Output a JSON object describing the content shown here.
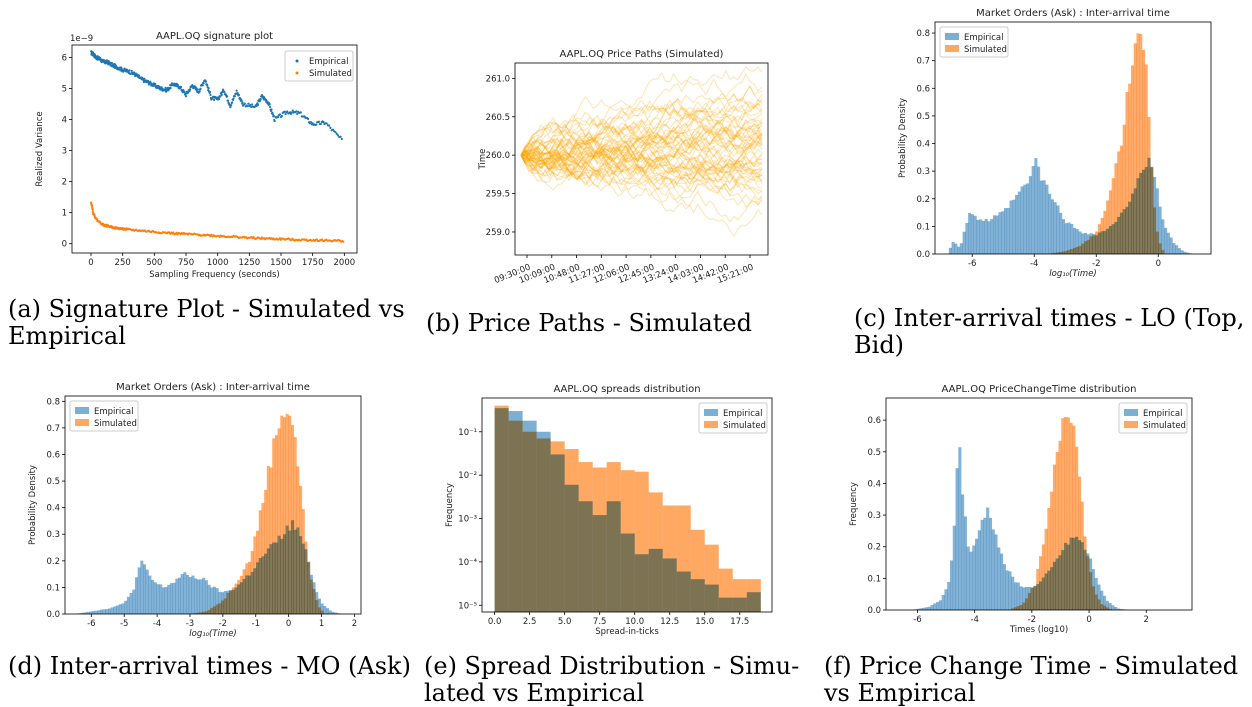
{
  "colors": {
    "empirical": "#1f77b4",
    "simulated": "#ff7f0e",
    "hist_empirical": "#7bafd4",
    "hist_simulated": "#ffa861",
    "path": "#ffa500"
  },
  "captions": {
    "a": [
      "(a) Signature Plot - Simulated vs",
      "Empirical"
    ],
    "b": [
      "(b) Price Paths - Simulated"
    ],
    "c": [
      "(c) Inter-arrival times - LO (Top,",
      "Bid)"
    ],
    "d": [
      "(d) Inter-arrival times - MO (Ask)"
    ],
    "e": [
      "(e)  Spread  Distribution  -  Simu-",
      "lated vs Empirical"
    ],
    "f": [
      "(f) Price Change Time - Simulated",
      "vs Empirical"
    ]
  },
  "chart_data": [
    {
      "id": "a",
      "type": "scatter",
      "title": "AAPL.OQ signature plot",
      "xlabel": "Sampling Frequency (seconds)",
      "ylabel": "Realized Variance",
      "y_multiplier": "1e−9",
      "xlim": [
        -150,
        2100
      ],
      "ylim": [
        -0.3,
        6.4
      ],
      "xticks": [
        0,
        250,
        500,
        750,
        1000,
        1250,
        1500,
        1750,
        2000
      ],
      "yticks": [
        0,
        1,
        2,
        3,
        4,
        5,
        6
      ],
      "legend": [
        "Empirical",
        "Simulated"
      ],
      "legend_position": "top-right",
      "series": [
        {
          "name": "Empirical",
          "points": [
            [
              1,
              6.15
            ],
            [
              20,
              6.1
            ],
            [
              40,
              6.0
            ],
            [
              70,
              5.95
            ],
            [
              100,
              5.85
            ],
            [
              130,
              5.85
            ],
            [
              170,
              5.75
            ],
            [
              200,
              5.7
            ],
            [
              250,
              5.6
            ],
            [
              300,
              5.55
            ],
            [
              350,
              5.45
            ],
            [
              400,
              5.3
            ],
            [
              450,
              5.2
            ],
            [
              500,
              5.1
            ],
            [
              550,
              5.0
            ],
            [
              600,
              4.95
            ],
            [
              650,
              5.15
            ],
            [
              700,
              5.05
            ],
            [
              750,
              4.8
            ],
            [
              800,
              5.1
            ],
            [
              850,
              4.9
            ],
            [
              900,
              5.3
            ],
            [
              950,
              4.7
            ],
            [
              1000,
              4.65
            ],
            [
              1050,
              4.95
            ],
            [
              1100,
              4.45
            ],
            [
              1150,
              4.9
            ],
            [
              1200,
              4.5
            ],
            [
              1300,
              4.4
            ],
            [
              1350,
              4.75
            ],
            [
              1400,
              4.55
            ],
            [
              1450,
              4.0
            ],
            [
              1550,
              4.25
            ],
            [
              1650,
              4.2
            ],
            [
              1750,
              3.85
            ],
            [
              1850,
              3.9
            ],
            [
              1990,
              3.3
            ]
          ]
        },
        {
          "name": "Simulated",
          "points": [
            [
              1,
              1.35
            ],
            [
              20,
              0.95
            ],
            [
              50,
              0.75
            ],
            [
              100,
              0.6
            ],
            [
              150,
              0.55
            ],
            [
              200,
              0.5
            ],
            [
              250,
              0.48
            ],
            [
              300,
              0.45
            ],
            [
              400,
              0.42
            ],
            [
              500,
              0.38
            ],
            [
              600,
              0.35
            ],
            [
              700,
              0.32
            ],
            [
              800,
              0.3
            ],
            [
              900,
              0.28
            ],
            [
              1000,
              0.25
            ],
            [
              1100,
              0.23
            ],
            [
              1200,
              0.2
            ],
            [
              1300,
              0.18
            ],
            [
              1400,
              0.16
            ],
            [
              1500,
              0.15
            ],
            [
              1600,
              0.13
            ],
            [
              1700,
              0.12
            ],
            [
              1800,
              0.11
            ],
            [
              1900,
              0.1
            ],
            [
              2000,
              0.09
            ]
          ]
        }
      ]
    },
    {
      "id": "b",
      "type": "line",
      "title": "AAPL.OQ Price Paths (Simulated)",
      "xlabel": "",
      "ylabel": "Time",
      "ylim": [
        258.7,
        261.2
      ],
      "yticks": [
        259.0,
        259.5,
        260.0,
        260.5,
        261.0
      ],
      "xticks": [
        "09:30:00",
        "10:09:00",
        "10:48:00",
        "11:27:00",
        "12:06:00",
        "12:45:00",
        "13:24:00",
        "14:03:00",
        "14:42:00",
        "15:21:00"
      ],
      "start_value": 260.0,
      "path_count": 60
    },
    {
      "id": "c",
      "type": "histogram",
      "title": "Market Orders (Ask) : Inter-arrival time",
      "xlabel": "log₁₀(Time)",
      "ylabel": "Probability Density",
      "xlim": [
        -7.2,
        1.7
      ],
      "ylim": [
        0,
        0.84
      ],
      "xticks": [
        -6,
        -4,
        -2,
        0
      ],
      "yticks": [
        0.0,
        0.1,
        0.2,
        0.3,
        0.4,
        0.5,
        0.6,
        0.7,
        0.8
      ],
      "legend": [
        "Empirical",
        "Simulated"
      ],
      "legend_position": "top-left",
      "series": [
        {
          "name": "Empirical",
          "points": [
            [
              -6.8,
              0.0
            ],
            [
              -6.6,
              0.05
            ],
            [
              -6.4,
              0.02
            ],
            [
              -6.1,
              0.15
            ],
            [
              -5.9,
              0.13
            ],
            [
              -5.5,
              0.12
            ],
            [
              -5.0,
              0.15
            ],
            [
              -4.5,
              0.22
            ],
            [
              -4.2,
              0.26
            ],
            [
              -3.95,
              0.34
            ],
            [
              -3.75,
              0.27
            ],
            [
              -3.5,
              0.22
            ],
            [
              -3.0,
              0.12
            ],
            [
              -2.5,
              0.08
            ],
            [
              -2.0,
              0.07
            ],
            [
              -1.5,
              0.1
            ],
            [
              -1.0,
              0.17
            ],
            [
              -0.6,
              0.3
            ],
            [
              -0.3,
              0.33
            ],
            [
              -0.1,
              0.26
            ],
            [
              0.2,
              0.1
            ],
            [
              0.5,
              0.04
            ],
            [
              0.8,
              0.01
            ],
            [
              1.1,
              0.0
            ]
          ]
        },
        {
          "name": "Simulated",
          "points": [
            [
              -3.6,
              0.0
            ],
            [
              -3.0,
              0.01
            ],
            [
              -2.5,
              0.03
            ],
            [
              -2.0,
              0.08
            ],
            [
              -1.6,
              0.2
            ],
            [
              -1.2,
              0.4
            ],
            [
              -0.9,
              0.65
            ],
            [
              -0.65,
              0.81
            ],
            [
              -0.45,
              0.75
            ],
            [
              -0.3,
              0.5
            ],
            [
              -0.15,
              0.2
            ],
            [
              0.0,
              0.05
            ],
            [
              0.2,
              0.0
            ]
          ]
        }
      ]
    },
    {
      "id": "d",
      "type": "histogram",
      "title": "Market Orders (Ask) : Inter-arrival time",
      "xlabel": "log₁₀(Time)",
      "ylabel": "Probability Density",
      "xlim": [
        -6.8,
        2.2
      ],
      "ylim": [
        0,
        0.82
      ],
      "xticks": [
        -6,
        -5,
        -4,
        -3,
        -2,
        -1,
        0,
        1,
        2
      ],
      "yticks": [
        0.0,
        0.1,
        0.2,
        0.3,
        0.4,
        0.5,
        0.6,
        0.7,
        0.8
      ],
      "legend": [
        "Empirical",
        "Simulated"
      ],
      "legend_position": "top-left",
      "series": [
        {
          "name": "Empirical",
          "points": [
            [
              -6.5,
              0.0
            ],
            [
              -6.0,
              0.01
            ],
            [
              -5.5,
              0.02
            ],
            [
              -5.0,
              0.04
            ],
            [
              -4.7,
              0.1
            ],
            [
              -4.5,
              0.2
            ],
            [
              -4.35,
              0.17
            ],
            [
              -4.1,
              0.12
            ],
            [
              -3.8,
              0.1
            ],
            [
              -3.5,
              0.12
            ],
            [
              -3.2,
              0.15
            ],
            [
              -2.9,
              0.14
            ],
            [
              -2.6,
              0.13
            ],
            [
              -2.3,
              0.1
            ],
            [
              -2.0,
              0.08
            ],
            [
              -1.6,
              0.1
            ],
            [
              -1.2,
              0.15
            ],
            [
              -0.7,
              0.23
            ],
            [
              -0.3,
              0.28
            ],
            [
              0.1,
              0.34
            ],
            [
              0.35,
              0.3
            ],
            [
              0.6,
              0.2
            ],
            [
              0.8,
              0.1
            ],
            [
              1.0,
              0.04
            ],
            [
              1.3,
              0.01
            ],
            [
              1.6,
              0.0
            ]
          ]
        },
        {
          "name": "Simulated",
          "points": [
            [
              -3.0,
              0.0
            ],
            [
              -2.5,
              0.01
            ],
            [
              -2.0,
              0.05
            ],
            [
              -1.6,
              0.12
            ],
            [
              -1.2,
              0.2
            ],
            [
              -0.9,
              0.35
            ],
            [
              -0.6,
              0.55
            ],
            [
              -0.3,
              0.72
            ],
            [
              -0.1,
              0.78
            ],
            [
              0.1,
              0.73
            ],
            [
              0.3,
              0.55
            ],
            [
              0.5,
              0.3
            ],
            [
              0.7,
              0.12
            ],
            [
              0.9,
              0.03
            ],
            [
              1.1,
              0.0
            ]
          ]
        }
      ]
    },
    {
      "id": "e",
      "type": "histogram",
      "title": "AAPL.OQ spreads distribution",
      "xlabel": "Spread-in-ticks",
      "ylabel": "Frequency",
      "xscale": "linear",
      "yscale": "log",
      "xlim": [
        -0.9,
        19.8
      ],
      "ylim": [
        7e-06,
        0.6
      ],
      "xticks": [
        0.0,
        2.5,
        5.0,
        7.5,
        10.0,
        12.5,
        15.0,
        17.5
      ],
      "yticks": [
        "10⁻⁵",
        "10⁻⁴",
        "10⁻³",
        "10⁻²",
        "10⁻¹"
      ],
      "legend": [
        "Empirical",
        "Simulated"
      ],
      "legend_position": "top-right",
      "bin_edges": [
        0,
        1,
        2,
        3,
        4,
        5,
        6,
        7,
        8,
        9,
        10,
        11,
        12,
        13,
        14,
        15,
        16,
        17,
        18,
        19
      ],
      "series": [
        {
          "name": "Empirical",
          "values": [
            0.35,
            0.3,
            0.18,
            0.1,
            0.03,
            0.006,
            0.0025,
            0.0012,
            0.0025,
            0.00045,
            0.00015,
            0.0002,
            0.00012,
            6e-05,
            4e-05,
            3e-05,
            1.5e-05,
            1.5e-05,
            2e-05
          ]
        },
        {
          "name": "Simulated",
          "values": [
            0.4,
            0.18,
            0.1,
            0.07,
            0.06,
            0.04,
            0.02,
            0.015,
            0.02,
            0.013,
            0.012,
            0.004,
            0.002,
            0.002,
            0.00055,
            0.00025,
            7e-05,
            4e-05,
            4e-05
          ]
        }
      ]
    },
    {
      "id": "f",
      "type": "histogram",
      "title": "AAPL.OQ PriceChangeTime distribution",
      "xlabel": "Times (log10)",
      "ylabel": "Frequency",
      "xlim": [
        -7.1,
        3.6
      ],
      "ylim": [
        0,
        0.67
      ],
      "xticks": [
        -6,
        -4,
        -2,
        0,
        2
      ],
      "yticks": [
        0.0,
        0.1,
        0.2,
        0.3,
        0.4,
        0.5,
        0.6
      ],
      "legend": [
        "Empirical",
        "Simulated"
      ],
      "legend_position": "top-right",
      "series": [
        {
          "name": "Empirical",
          "points": [
            [
              -6.2,
              0.0
            ],
            [
              -5.6,
              0.01
            ],
            [
              -5.2,
              0.03
            ],
            [
              -4.85,
              0.1
            ],
            [
              -4.7,
              0.3
            ],
            [
              -4.55,
              0.55
            ],
            [
              -4.4,
              0.35
            ],
            [
              -4.2,
              0.18
            ],
            [
              -4.0,
              0.2
            ],
            [
              -3.7,
              0.3
            ],
            [
              -3.5,
              0.32
            ],
            [
              -3.3,
              0.25
            ],
            [
              -3.0,
              0.15
            ],
            [
              -2.6,
              0.09
            ],
            [
              -2.2,
              0.07
            ],
            [
              -1.8,
              0.08
            ],
            [
              -1.4,
              0.12
            ],
            [
              -1.0,
              0.18
            ],
            [
              -0.6,
              0.23
            ],
            [
              -0.3,
              0.22
            ],
            [
              0.0,
              0.17
            ],
            [
              0.3,
              0.09
            ],
            [
              0.6,
              0.03
            ],
            [
              1.0,
              0.005
            ],
            [
              1.4,
              0.0
            ]
          ]
        },
        {
          "name": "Simulated",
          "points": [
            [
              -2.8,
              0.0
            ],
            [
              -2.3,
              0.02
            ],
            [
              -1.9,
              0.08
            ],
            [
              -1.5,
              0.25
            ],
            [
              -1.2,
              0.45
            ],
            [
              -0.95,
              0.6
            ],
            [
              -0.75,
              0.65
            ],
            [
              -0.55,
              0.6
            ],
            [
              -0.35,
              0.45
            ],
            [
              -0.15,
              0.25
            ],
            [
              0.1,
              0.08
            ],
            [
              0.4,
              0.02
            ],
            [
              0.8,
              0.0
            ]
          ]
        }
      ]
    }
  ]
}
